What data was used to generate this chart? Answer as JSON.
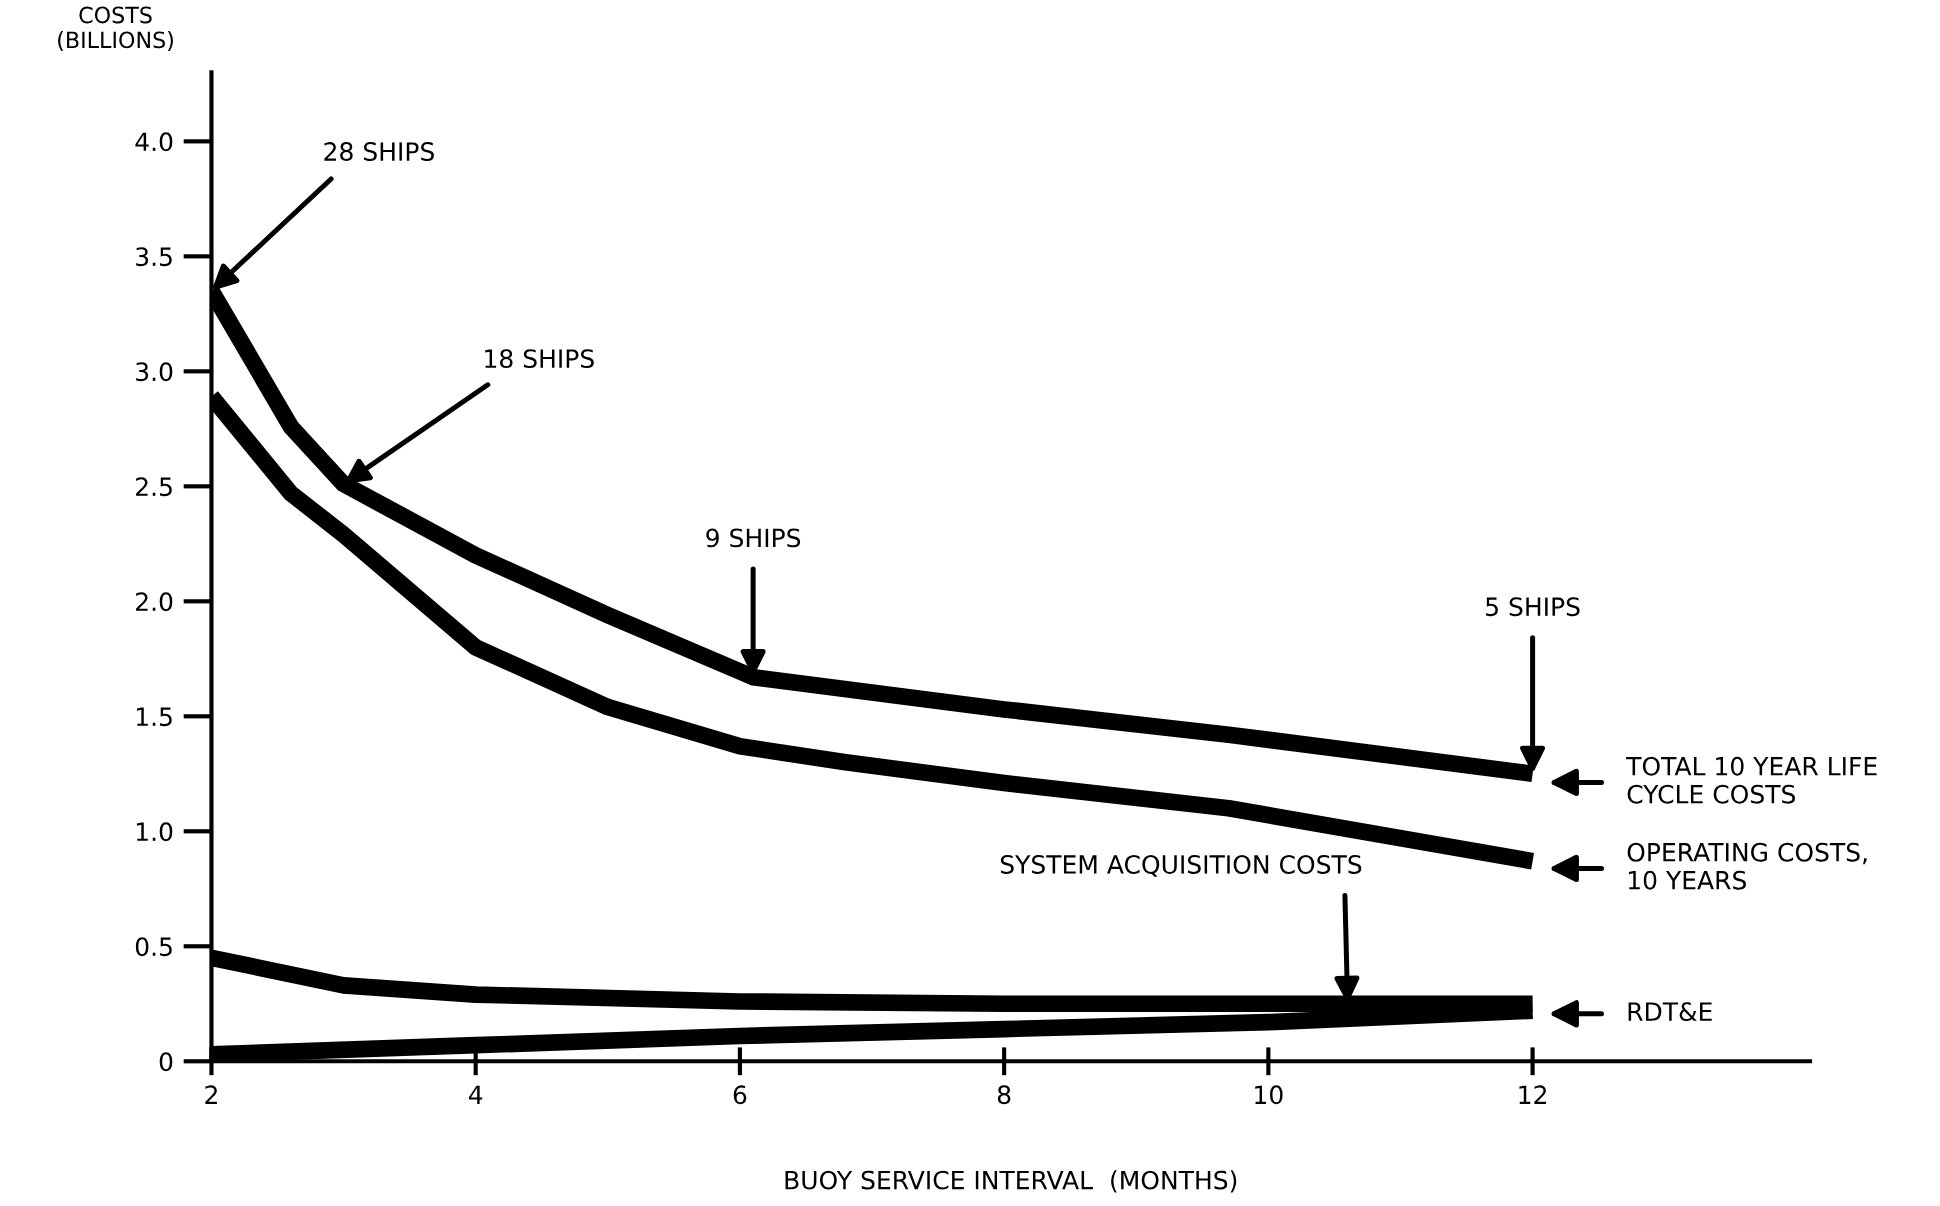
{
  "chart_data": {
    "type": "line",
    "xlabel": "BUOY SERVICE INTERVAL  (MONTHS)",
    "ylabel": "COSTS\n(BILLIONS)",
    "xlim": [
      2,
      14.1
    ],
    "ylim": [
      0,
      4.3
    ],
    "xticks": [
      2,
      4,
      6,
      8,
      10,
      12
    ],
    "yticks": [
      0,
      0.5,
      {
        "value": 1,
        "label": "1.0"
      },
      1.5,
      {
        "value": 2,
        "label": "2.0"
      },
      2.5,
      {
        "value": 3,
        "label": "3.0"
      },
      3.5,
      {
        "value": 4,
        "label": "4.0"
      }
    ],
    "grid": false,
    "legend": false,
    "marker": "none",
    "line_style": "solid",
    "series": [
      {
        "color": "#000000",
        "x": [
          2,
          2.6,
          3,
          4,
          5,
          6.1,
          8,
          9.7,
          12
        ],
        "values": [
          3.35,
          2.76,
          2.51,
          2.2,
          1.94,
          1.67,
          1.53,
          1.42,
          1.25
        ]
      },
      {
        "color": "#000000",
        "x": [
          2,
          2.6,
          3,
          4,
          5,
          6,
          6.8,
          8,
          9.7,
          12
        ],
        "values": [
          2.89,
          2.47,
          2.29,
          1.8,
          1.54,
          1.37,
          1.3,
          1.21,
          1.1,
          0.87
        ]
      },
      {
        "color": "#000000",
        "x": [
          2,
          3,
          4,
          6,
          8,
          10,
          12
        ],
        "values": [
          0.45,
          0.33,
          0.29,
          0.26,
          0.25,
          0.25,
          0.25
        ]
      },
      {
        "color": "#000000",
        "x": [
          2,
          4,
          6,
          8,
          10,
          12
        ],
        "values": [
          0.03,
          0.07,
          0.11,
          0.14,
          0.17,
          0.22
        ]
      }
    ],
    "annotations": [
      {
        "text": "28 SHIPS",
        "x": 2,
        "y": 3.35
      },
      {
        "text": "18 SHIPS",
        "x": 3,
        "y": 2.51
      },
      {
        "text": "9 SHIPS",
        "x": 6.1,
        "y": 1.67
      },
      {
        "text": "5 SHIPS",
        "x": 12,
        "y": 1.25
      },
      "TOTAL 10 YEAR LIFE\nCYCLE COSTS",
      "OPERATING COSTS,\n10 YEARS",
      {
        "text": "SYSTEM ACQUISITION COSTS",
        "x": 10.6,
        "y": 0.25
      },
      "RDT&E"
    ]
  }
}
